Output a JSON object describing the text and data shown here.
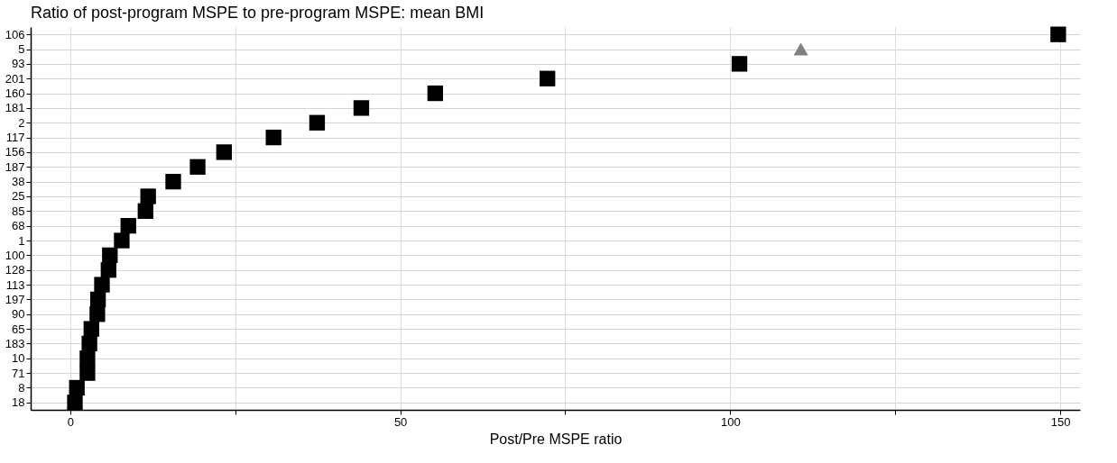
{
  "chart_data": {
    "type": "scatter",
    "title": "Ratio of post-program MSPE to pre-program MSPE: mean BMI",
    "xlabel": "Post/Pre MSPE ratio",
    "categories": [
      "106",
      "5",
      "93",
      "201",
      "160",
      "181",
      "2",
      "117",
      "156",
      "187",
      "38",
      "25",
      "85",
      "68",
      "1",
      "100",
      "128",
      "113",
      "197",
      "90",
      "65",
      "183",
      "10",
      "71",
      "8",
      "18"
    ],
    "orientation": "horizontal",
    "series": [
      {
        "color": "#000000",
        "marker": "square",
        "values": [
          149.7,
          null,
          101.4,
          72.3,
          55.3,
          44.1,
          37.4,
          30.8,
          23.3,
          19.3,
          15.6,
          11.8,
          11.4,
          8.8,
          7.8,
          6.0,
          5.8,
          4.8,
          4.2,
          4.1,
          3.2,
          2.9,
          2.6,
          2.6,
          1.0,
          0.7
        ]
      },
      {
        "color": "#808080",
        "marker": "triangle",
        "values": [
          null,
          110.7,
          null,
          null,
          null,
          null,
          null,
          null,
          null,
          null,
          null,
          null,
          null,
          null,
          null,
          null,
          null,
          null,
          null,
          null,
          null,
          null,
          null,
          null,
          null,
          null
        ]
      }
    ],
    "xlim": [
      -6,
      153
    ],
    "xticks": [
      0,
      {
        "value": 25,
        "label": null
      },
      50,
      {
        "value": 75,
        "label": null
      },
      100,
      {
        "value": 125,
        "label": null
      },
      150
    ],
    "grid": true
  }
}
